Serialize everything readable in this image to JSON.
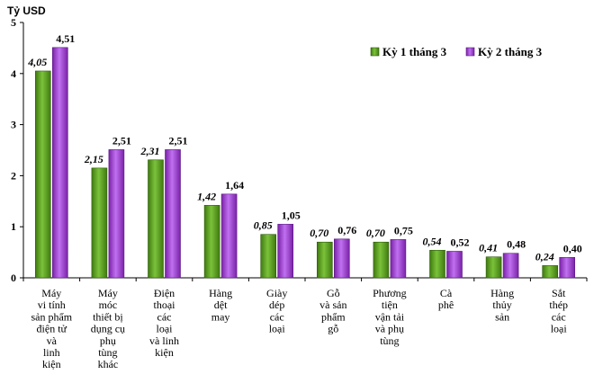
{
  "chart_data": {
    "type": "bar",
    "ylabel": "Tỷ USD",
    "ylim": [
      0,
      5
    ],
    "yticks": [
      0,
      1,
      2,
      3,
      4,
      5
    ],
    "grid": false,
    "legend_position": "top-right",
    "categories": [
      [
        "Máy",
        "vi tính",
        "sản phẩm",
        "điện tử",
        "và",
        "linh",
        "kiện"
      ],
      [
        "Máy",
        "móc",
        "thiết bị",
        "dụng cụ",
        "phụ",
        "tùng",
        "khác"
      ],
      [
        "Điện",
        "thoại",
        "các",
        "loại",
        "và linh",
        "kiện"
      ],
      [
        "Hàng",
        "dệt",
        "may"
      ],
      [
        "Giày",
        "dép",
        "các",
        "loại"
      ],
      [
        "Gỗ",
        "và sản",
        "phẩm",
        "gỗ"
      ],
      [
        "Phương",
        "tiện",
        "vận tải",
        "và phụ",
        "tùng"
      ],
      [
        "Cà",
        "phê"
      ],
      [
        "Hàng",
        "thủy",
        "sản"
      ],
      [
        "Sắt",
        "thép",
        "các",
        "loại"
      ]
    ],
    "series": [
      {
        "name": "Kỳ 1 tháng 3",
        "color": "#5a9a1e",
        "values": [
          4.05,
          2.15,
          2.31,
          1.42,
          0.85,
          0.7,
          0.7,
          0.54,
          0.41,
          0.24
        ],
        "labels": [
          "4,05",
          "2,15",
          "2,31",
          "1,42",
          "0,85",
          "0,70",
          "0,70",
          "0,54",
          "0,41",
          "0,24"
        ]
      },
      {
        "name": "Kỳ 2 tháng 3",
        "color": "#a040d0",
        "values": [
          4.51,
          2.51,
          2.51,
          1.64,
          1.05,
          0.76,
          0.75,
          0.52,
          0.48,
          0.4
        ],
        "labels": [
          "4,51",
          "2,51",
          "2,51",
          "1,64",
          "1,05",
          "0,76",
          "0,75",
          "0,52",
          "0,48",
          "0,40"
        ]
      }
    ]
  }
}
